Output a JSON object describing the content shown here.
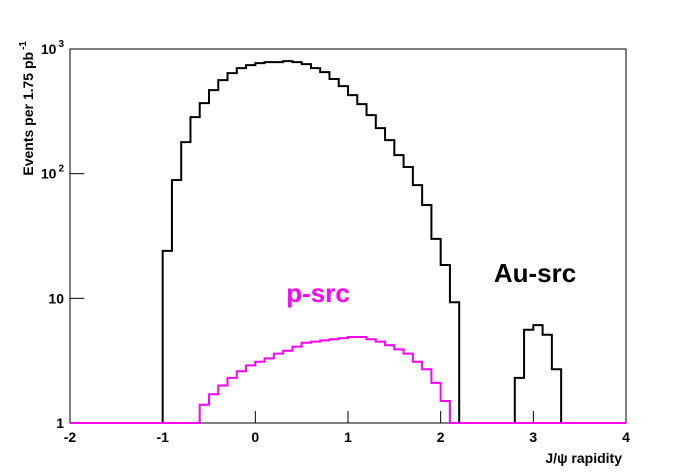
{
  "chart_data": {
    "type": "histogram",
    "xlabel": "J/ψ rapidity",
    "ylabel": "Events per 1.75 pb^-1",
    "bins": [
      -2,
      -1.9,
      -1.8,
      -1.7,
      -1.6,
      -1.5,
      -1.4,
      -1.3,
      -1.2,
      -1.1,
      -1,
      -0.9,
      -0.8,
      -0.7,
      -0.6,
      -0.5,
      -0.4,
      -0.3,
      -0.2,
      -0.1,
      0,
      0.1,
      0.2,
      0.3,
      0.4,
      0.5,
      0.6,
      0.7,
      0.8,
      0.9,
      1,
      1.1,
      1.2,
      1.3,
      1.4,
      1.5,
      1.6,
      1.7,
      1.8,
      1.9,
      2,
      2.1,
      2.2,
      2.3,
      2.4,
      2.5,
      2.6,
      2.7,
      2.8,
      2.9,
      3,
      3.1,
      3.2,
      3.3,
      3.4,
      3.5,
      3.6,
      3.7,
      3.8,
      3.9,
      4
    ],
    "series": [
      {
        "name": "Au-src",
        "color": "#000000",
        "values": [
          0,
          0,
          0,
          0,
          0,
          0,
          0,
          0,
          0,
          0,
          24,
          89,
          179,
          284,
          368,
          468,
          563,
          641,
          703,
          743,
          771,
          785,
          785,
          800,
          785,
          757,
          703,
          653,
          574,
          504,
          427,
          361,
          295,
          232,
          186,
          141,
          113,
          81,
          56,
          30,
          18.5,
          9.3,
          0,
          0,
          0,
          0,
          0,
          0,
          2.3,
          5.6,
          6.1,
          5.1,
          2.7,
          0,
          0,
          0,
          0,
          0,
          0,
          0
        ]
      },
      {
        "name": "p-src",
        "color": "#ff00ff",
        "values": [
          0,
          0,
          0,
          0,
          0,
          0,
          0,
          0,
          0,
          0,
          0,
          0,
          0,
          0,
          1.4,
          1.7,
          2.0,
          2.3,
          2.6,
          2.9,
          3.1,
          3.3,
          3.6,
          3.8,
          4.1,
          4.4,
          4.5,
          4.6,
          4.7,
          4.8,
          4.9,
          4.9,
          4.7,
          4.5,
          4.2,
          3.9,
          3.6,
          3.1,
          2.7,
          2.1,
          1.5,
          0,
          0,
          0,
          0,
          0,
          0,
          0,
          0,
          0,
          0,
          0,
          0,
          0,
          0,
          0,
          0,
          0,
          0,
          0
        ]
      }
    ],
    "xlim": [
      -2,
      4
    ],
    "xticks": [
      -2,
      -1,
      0,
      1,
      2,
      3,
      4
    ],
    "ylim": [
      1,
      1000
    ],
    "yticks": [
      1,
      10,
      {
        "value": 100,
        "label": "10^2"
      },
      {
        "value": 1000,
        "label": "10^3"
      }
    ],
    "log_y": true
  }
}
